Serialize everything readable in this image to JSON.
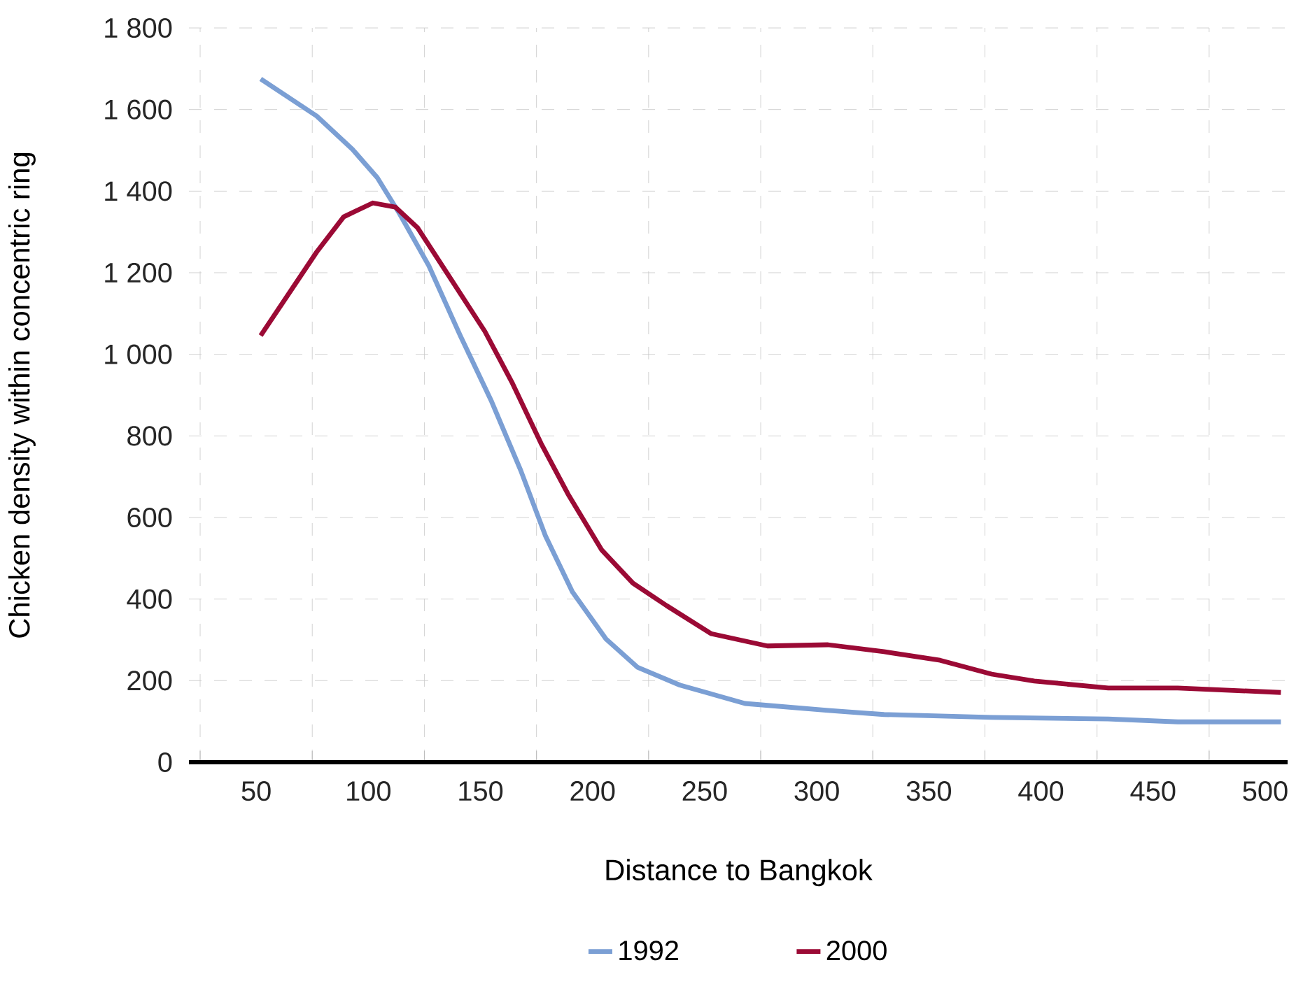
{
  "chart_data": {
    "type": "line",
    "xlabel": "Distance to Bangkok",
    "ylabel": "Chicken density within concentric ring",
    "xlim": [
      20,
      510
    ],
    "ylim": [
      0,
      1800
    ],
    "xticks": [
      {
        "value": 25,
        "label": null
      },
      50,
      {
        "value": 75,
        "label": null
      },
      100,
      {
        "value": 125,
        "label": null
      },
      150,
      {
        "value": 175,
        "label": null
      },
      200,
      {
        "value": 225,
        "label": null
      },
      250,
      {
        "value": 275,
        "label": null
      },
      300,
      {
        "value": 325,
        "label": null
      },
      350,
      {
        "value": 375,
        "label": null
      },
      400,
      {
        "value": 425,
        "label": null
      },
      450,
      {
        "value": 475,
        "label": null
      },
      500
    ],
    "yticks": [
      0,
      200,
      400,
      600,
      800,
      {
        "value": 1000,
        "label": "1 000"
      },
      {
        "value": 1200,
        "label": "1 200"
      },
      {
        "value": 1400,
        "label": "1 400"
      },
      {
        "value": 1600,
        "label": "1 600"
      },
      {
        "value": 1800,
        "label": "1 800"
      }
    ],
    "grid": true,
    "legend": "bottom",
    "marker": "none",
    "line_style": "solid",
    "series": [
      {
        "name": "1992",
        "color": "#7b9fd4",
        "x": [
          52,
          77,
          93,
          104,
          114,
          127,
          141,
          155,
          168,
          179,
          191,
          206,
          220,
          239,
          268,
          305,
          330,
          378,
          430,
          461,
          507
        ],
        "values": [
          1675,
          1584,
          1502,
          1433,
          1344,
          1217,
          1046,
          884,
          715,
          555,
          418,
          302,
          233,
          189,
          144,
          127,
          117,
          110,
          106,
          99,
          99
        ]
      },
      {
        "name": "2000",
        "color": "#9b0a35",
        "x": [
          52,
          77,
          89,
          102,
          112,
          122,
          137,
          152,
          164,
          177,
          189,
          204,
          218,
          233,
          253,
          278,
          305,
          330,
          355,
          378,
          397,
          430,
          461,
          507
        ],
        "values": [
          1046,
          1251,
          1337,
          1371,
          1361,
          1310,
          1183,
          1056,
          932,
          782,
          658,
          521,
          439,
          384,
          315,
          285,
          288,
          271,
          250,
          216,
          199,
          182,
          182,
          171
        ]
      }
    ]
  }
}
